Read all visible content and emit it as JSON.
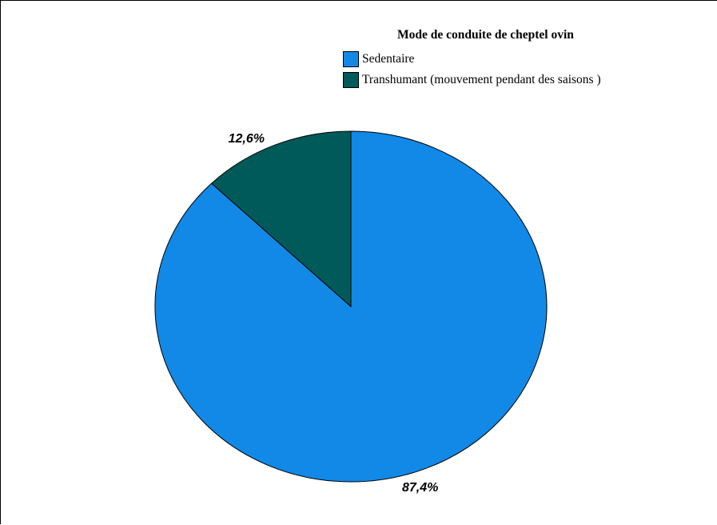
{
  "colors": {
    "sedentaire": "#1289E6",
    "transhumant": "#005A5A",
    "outline": "#000000"
  },
  "chart_data": {
    "type": "pie",
    "title": "",
    "legend": {
      "title": "Mode de conduite de cheptel ovin",
      "placement": "top-right"
    },
    "slices": [
      {
        "label": "Sedentaire",
        "value": 87.4,
        "value_label": "87,4%"
      },
      {
        "label": "Transhumant (mouvement pendant des saisons )",
        "value": 12.6,
        "value_label": "12,6%"
      }
    ],
    "start_angle": "12 o'clock",
    "direction": "clockwise",
    "grid": false
  }
}
